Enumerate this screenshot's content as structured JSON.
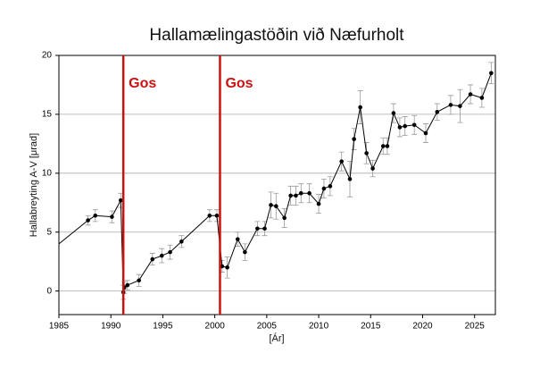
{
  "chart_data": {
    "type": "line",
    "title": "Hallamælingastöðin við Næfurholt",
    "x_label": "[Ár]",
    "y_label": "Hallabreyting A-V [μrad]",
    "xlim": [
      1985,
      2027
    ],
    "xticks": [
      1985,
      1990,
      1995,
      2000,
      2005,
      2010,
      2015,
      2020,
      2025
    ],
    "ylim": [
      -2,
      20
    ],
    "yticks": [
      0,
      5,
      10,
      15,
      20
    ],
    "grid": true,
    "annotations": [
      {
        "text": "Gos",
        "x": 1991.2,
        "color": "#cc1111"
      },
      {
        "text": "Gos",
        "x": 2000.5,
        "color": "#cc1111"
      }
    ],
    "series": [
      {
        "color": "#000000",
        "error_color": "#999999",
        "x": [
          1985,
          1987.8,
          1988.5,
          1990.1,
          1990.95,
          1991.2,
          1991.3,
          1991.6,
          1992.7,
          1994.0,
          1994.9,
          1995.7,
          1996.8,
          1999.5,
          2000.2,
          2000.7,
          2001.2,
          2002.2,
          2002.9,
          2004.1,
          2004.8,
          2005.4,
          2005.9,
          2006.7,
          2007.3,
          2007.8,
          2008.3,
          2009.1,
          2010.0,
          2010.5,
          2011.1,
          2012.2,
          2013.0,
          2013.4,
          2014.0,
          2014.6,
          2015.2,
          2016.2,
          2016.6,
          2017.2,
          2017.8,
          2018.3,
          2019.2,
          2020.3,
          2021.4,
          2022.7,
          2023.6,
          2024.6,
          2025.7,
          2026.6
        ],
        "values": [
          4.0,
          6.0,
          6.4,
          6.3,
          7.7,
          -0.1,
          0.3,
          0.5,
          0.9,
          2.7,
          3.0,
          3.3,
          4.2,
          6.4,
          6.4,
          2.1,
          2.0,
          4.4,
          3.3,
          5.3,
          5.3,
          7.3,
          7.2,
          6.2,
          8.1,
          8.1,
          8.3,
          8.3,
          7.4,
          8.7,
          8.9,
          11.0,
          9.5,
          12.9,
          15.6,
          11.7,
          10.4,
          12.3,
          12.3,
          15.1,
          13.9,
          14.0,
          14.1,
          13.4,
          15.2,
          15.8,
          15.7,
          16.7,
          16.4,
          18.5
        ],
        "errors": [
          null,
          0.4,
          0.5,
          0.5,
          0.6,
          0.6,
          0.5,
          0.4,
          0.5,
          0.5,
          0.6,
          0.6,
          0.5,
          0.5,
          0.5,
          0.5,
          0.9,
          0.6,
          0.7,
          0.6,
          0.6,
          1.1,
          1.1,
          0.8,
          0.8,
          0.8,
          0.8,
          0.8,
          0.8,
          0.8,
          0.8,
          0.8,
          1.5,
          0.9,
          1.4,
          0.9,
          0.7,
          0.7,
          0.7,
          0.8,
          0.8,
          0.8,
          0.8,
          0.8,
          0.7,
          0.8,
          1.4,
          0.8,
          0.8,
          0.9
        ]
      }
    ]
  }
}
